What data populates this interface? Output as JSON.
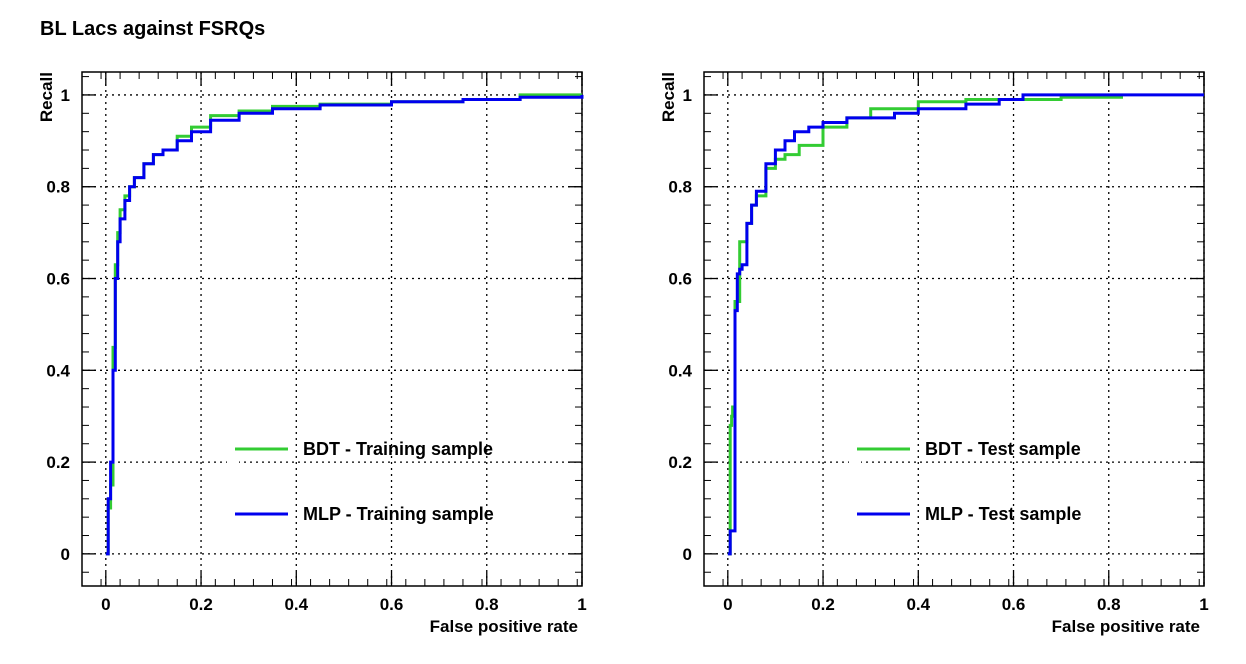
{
  "title": "BL Lacs against FSRQs",
  "colors": {
    "bdt": "#33cc33",
    "mlp": "#0000ee",
    "axis": "#000000",
    "grid": "#000000"
  },
  "chart_data": [
    {
      "type": "line",
      "xlabel": "False positive rate",
      "ylabel": "Recall",
      "xlim": [
        -0.05,
        1.0
      ],
      "ylim": [
        -0.07,
        1.05
      ],
      "xticks": [
        0,
        0.2,
        0.4,
        0.6,
        0.8,
        1
      ],
      "yticks": [
        0,
        0.2,
        0.4,
        0.6,
        0.8,
        1
      ],
      "xtick_labels": [
        "0",
        "0.2",
        "0.4",
        "0.6",
        "0.8",
        "1"
      ],
      "ytick_labels": [
        "0",
        "0.2",
        "0.4",
        "0.6",
        "0.8",
        "1"
      ],
      "grid": true,
      "legend_position": "bottom-right",
      "series": [
        {
          "name": "BDT - Training sample",
          "color_key": "bdt",
          "x": [
            0,
            0.005,
            0.01,
            0.015,
            0.02,
            0.025,
            0.03,
            0.04,
            0.05,
            0.06,
            0.08,
            0.1,
            0.12,
            0.15,
            0.18,
            0.22,
            0.28,
            0.35,
            0.45,
            0.6,
            0.75,
            0.87,
            1.0
          ],
          "y": [
            0,
            0.1,
            0.15,
            0.45,
            0.63,
            0.7,
            0.75,
            0.78,
            0.8,
            0.82,
            0.85,
            0.87,
            0.88,
            0.91,
            0.93,
            0.955,
            0.965,
            0.975,
            0.98,
            0.985,
            0.99,
            1.0,
            1.0
          ]
        },
        {
          "name": "MLP - Training sample",
          "color_key": "mlp",
          "x": [
            0,
            0.005,
            0.01,
            0.015,
            0.02,
            0.025,
            0.03,
            0.04,
            0.05,
            0.06,
            0.08,
            0.1,
            0.12,
            0.15,
            0.18,
            0.22,
            0.28,
            0.35,
            0.45,
            0.6,
            0.75,
            0.87,
            1.0
          ],
          "y": [
            0,
            0.12,
            0.2,
            0.4,
            0.6,
            0.68,
            0.73,
            0.77,
            0.8,
            0.82,
            0.85,
            0.87,
            0.88,
            0.9,
            0.92,
            0.945,
            0.96,
            0.97,
            0.978,
            0.985,
            0.99,
            0.995,
            1.0
          ]
        }
      ]
    },
    {
      "type": "line",
      "xlabel": "False positive rate",
      "ylabel": "Recall",
      "xlim": [
        -0.05,
        1.0
      ],
      "ylim": [
        -0.07,
        1.05
      ],
      "xticks": [
        0,
        0.2,
        0.4,
        0.6,
        0.8,
        1
      ],
      "yticks": [
        0,
        0.2,
        0.4,
        0.6,
        0.8,
        1
      ],
      "xtick_labels": [
        "0",
        "0.2",
        "0.4",
        "0.6",
        "0.8",
        "1"
      ],
      "ytick_labels": [
        "0",
        "0.2",
        "0.4",
        "0.6",
        "0.8",
        "1"
      ],
      "grid": true,
      "legend_position": "bottom-right",
      "series": [
        {
          "name": "BDT - Test sample",
          "color_key": "bdt",
          "x": [
            0,
            0.005,
            0.008,
            0.01,
            0.015,
            0.02,
            0.025,
            0.03,
            0.04,
            0.05,
            0.06,
            0.08,
            0.1,
            0.12,
            0.15,
            0.2,
            0.25,
            0.3,
            0.4,
            0.5,
            0.6,
            0.7,
            0.83
          ],
          "y": [
            0,
            0.28,
            0.3,
            0.32,
            0.55,
            0.55,
            0.68,
            0.68,
            0.72,
            0.76,
            0.78,
            0.84,
            0.86,
            0.87,
            0.89,
            0.93,
            0.95,
            0.97,
            0.985,
            0.99,
            0.99,
            0.995,
            0.995
          ]
        },
        {
          "name": "MLP - Test sample",
          "color_key": "mlp",
          "x": [
            0,
            0.005,
            0.01,
            0.015,
            0.02,
            0.025,
            0.03,
            0.04,
            0.05,
            0.06,
            0.08,
            0.1,
            0.12,
            0.14,
            0.17,
            0.2,
            0.25,
            0.3,
            0.35,
            0.4,
            0.5,
            0.57,
            0.62,
            1.0
          ],
          "y": [
            0,
            0.05,
            0.05,
            0.53,
            0.61,
            0.62,
            0.63,
            0.72,
            0.76,
            0.79,
            0.85,
            0.88,
            0.9,
            0.92,
            0.93,
            0.94,
            0.95,
            0.95,
            0.96,
            0.97,
            0.98,
            0.99,
            1.0,
            1.0
          ]
        }
      ]
    }
  ]
}
